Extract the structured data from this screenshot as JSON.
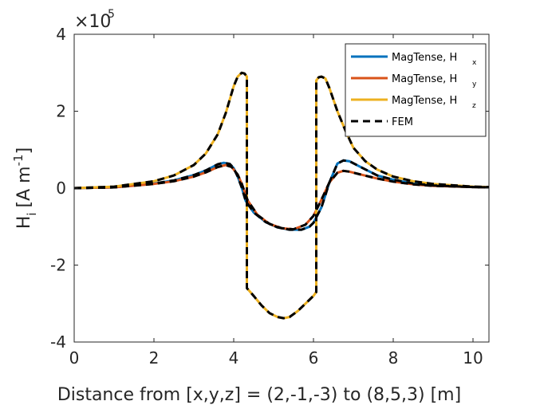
{
  "chart_data": {
    "type": "line",
    "xlabel": "Distance from [x,y,z] = (2,-1,-3) to (8,5,3) [m]",
    "ylabel_main": "H",
    "ylabel_sub": "i",
    "ylabel_unit": "[A m",
    "ylabel_exp": "-1",
    "ylabel_close": "]",
    "y_multiplier": {
      "base": "×10",
      "exponent": "5"
    },
    "xlim": [
      0,
      10.4
    ],
    "ylim": [
      -4,
      4
    ],
    "x_ticks": [
      0,
      2,
      4,
      6,
      8,
      10
    ],
    "y_ticks": [
      -4,
      -2,
      0,
      2,
      4
    ],
    "y_tick_labels": [
      "-4",
      "-2",
      "0",
      "2",
      "4"
    ],
    "y_scale": 100000,
    "grid": false,
    "legend_position": "top-right",
    "series": [
      {
        "name": "MagTense, H",
        "sub": "x",
        "color": "#0072BD",
        "dash": "solid",
        "x": [
          0,
          1,
          2,
          2.5,
          3,
          3.3,
          3.6,
          3.75,
          3.9,
          4.0,
          4.1,
          4.2,
          4.3,
          4.5,
          4.8,
          5.1,
          5.4,
          5.7,
          5.9,
          6.0,
          6.2,
          6.4,
          6.6,
          6.75,
          6.9,
          7.2,
          7.6,
          8,
          8.5,
          9,
          10,
          10.4
        ],
        "y": [
          0,
          0.02,
          0.12,
          0.2,
          0.34,
          0.46,
          0.62,
          0.66,
          0.63,
          0.52,
          0.3,
          0.02,
          -0.33,
          -0.63,
          -0.88,
          -1.02,
          -1.08,
          -1.08,
          -1.0,
          -0.9,
          -0.5,
          0.15,
          0.64,
          0.72,
          0.7,
          0.54,
          0.33,
          0.22,
          0.12,
          0.07,
          0.03,
          0.02
        ]
      },
      {
        "name": "MagTense, H",
        "sub": "y",
        "color": "#D95319",
        "dash": "solid",
        "x": [
          0,
          1,
          2,
          2.5,
          3,
          3.3,
          3.6,
          3.8,
          3.95,
          4.1,
          4.2,
          4.35,
          4.6,
          4.9,
          5.2,
          5.5,
          5.8,
          6.0,
          6.2,
          6.4,
          6.6,
          6.75,
          6.9,
          7.2,
          7.6,
          8,
          8.5,
          9,
          10,
          10.4
        ],
        "y": [
          0,
          0.02,
          0.11,
          0.18,
          0.3,
          0.41,
          0.55,
          0.6,
          0.55,
          0.35,
          0.12,
          -0.32,
          -0.7,
          -0.93,
          -1.04,
          -1.07,
          -0.95,
          -0.72,
          -0.3,
          0.15,
          0.4,
          0.45,
          0.43,
          0.35,
          0.25,
          0.17,
          0.1,
          0.06,
          0.03,
          0.02
        ]
      },
      {
        "name": "MagTense, H",
        "sub": "z",
        "color": "#EDB120",
        "dash": "solid",
        "x": [
          0,
          1,
          2,
          2.5,
          3,
          3.3,
          3.6,
          3.8,
          3.9,
          4.0,
          4.1,
          4.2,
          4.27,
          4.33,
          4.33,
          4.5,
          4.7,
          4.9,
          5.1,
          5.25,
          5.4,
          5.6,
          5.8,
          6.0,
          6.07,
          6.07,
          6.13,
          6.2,
          6.3,
          6.4,
          6.5,
          6.6,
          6.8,
          7.0,
          7.3,
          7.6,
          8,
          8.5,
          9,
          10,
          10.4
        ],
        "y": [
          0,
          0.04,
          0.18,
          0.33,
          0.6,
          0.9,
          1.4,
          1.95,
          2.3,
          2.65,
          2.9,
          3.0,
          2.98,
          2.9,
          -2.6,
          -2.8,
          -3.05,
          -3.25,
          -3.35,
          -3.38,
          -3.35,
          -3.2,
          -3.0,
          -2.8,
          -2.7,
          2.8,
          2.88,
          2.9,
          2.85,
          2.6,
          2.3,
          2.0,
          1.5,
          1.05,
          0.7,
          0.48,
          0.3,
          0.18,
          0.11,
          0.04,
          0.03
        ]
      },
      {
        "name": "FEM",
        "sub": "",
        "color": "#000000",
        "dash": "dashed",
        "x": [
          0,
          1,
          2,
          2.5,
          3,
          3.3,
          3.6,
          3.8,
          3.9,
          4.0,
          4.1,
          4.2,
          4.27,
          4.33,
          4.33,
          4.5,
          4.7,
          4.9,
          5.1,
          5.25,
          5.4,
          5.6,
          5.8,
          6.0,
          6.07,
          6.07,
          6.13,
          6.2,
          6.3,
          6.4,
          6.5,
          6.6,
          6.8,
          7.0,
          7.3,
          7.6,
          8,
          8.5,
          9,
          10,
          10.4
        ],
        "y": [
          0,
          0.04,
          0.18,
          0.33,
          0.6,
          0.9,
          1.4,
          1.95,
          2.3,
          2.65,
          2.9,
          3.0,
          2.98,
          2.9,
          -2.6,
          -2.8,
          -3.05,
          -3.25,
          -3.35,
          -3.38,
          -3.35,
          -3.2,
          -3.0,
          -2.8,
          -2.7,
          2.8,
          2.88,
          2.9,
          2.85,
          2.6,
          2.3,
          2.0,
          1.5,
          1.05,
          0.7,
          0.48,
          0.3,
          0.18,
          0.11,
          0.04,
          0.03
        ]
      },
      {
        "name": "",
        "sub": "",
        "color": "#000000",
        "dash": "dashed",
        "in_legend": false,
        "x": [
          0,
          1,
          2,
          2.5,
          3,
          3.3,
          3.6,
          3.75,
          3.9,
          4.0,
          4.1,
          4.2,
          4.3,
          4.5,
          4.8,
          5.1,
          5.4,
          5.7,
          5.9,
          6.0,
          6.2,
          6.4,
          6.6,
          6.75,
          6.9,
          7.2,
          7.6,
          8,
          8.5,
          9,
          10,
          10.4
        ],
        "y": [
          0,
          0.02,
          0.12,
          0.2,
          0.34,
          0.46,
          0.62,
          0.66,
          0.63,
          0.52,
          0.3,
          0.02,
          -0.33,
          -0.63,
          -0.88,
          -1.02,
          -1.08,
          -1.08,
          -1.0,
          -0.9,
          -0.5,
          0.15,
          0.64,
          0.72,
          0.7,
          0.54,
          0.33,
          0.22,
          0.12,
          0.07,
          0.03,
          0.02
        ]
      },
      {
        "name": "",
        "sub": "",
        "color": "#000000",
        "dash": "dashed",
        "in_legend": false,
        "x": [
          0,
          1,
          2,
          2.5,
          3,
          3.3,
          3.6,
          3.8,
          3.95,
          4.1,
          4.2,
          4.35,
          4.6,
          4.9,
          5.2,
          5.5,
          5.8,
          6.0,
          6.2,
          6.4,
          6.6,
          6.75,
          6.9,
          7.2,
          7.6,
          8,
          8.5,
          9,
          10,
          10.4
        ],
        "y": [
          0,
          0.02,
          0.11,
          0.18,
          0.3,
          0.41,
          0.55,
          0.6,
          0.55,
          0.35,
          0.12,
          -0.32,
          -0.7,
          -0.93,
          -1.04,
          -1.07,
          -0.95,
          -0.72,
          -0.3,
          0.15,
          0.4,
          0.45,
          0.43,
          0.35,
          0.25,
          0.17,
          0.1,
          0.06,
          0.03,
          0.02
        ]
      }
    ]
  }
}
